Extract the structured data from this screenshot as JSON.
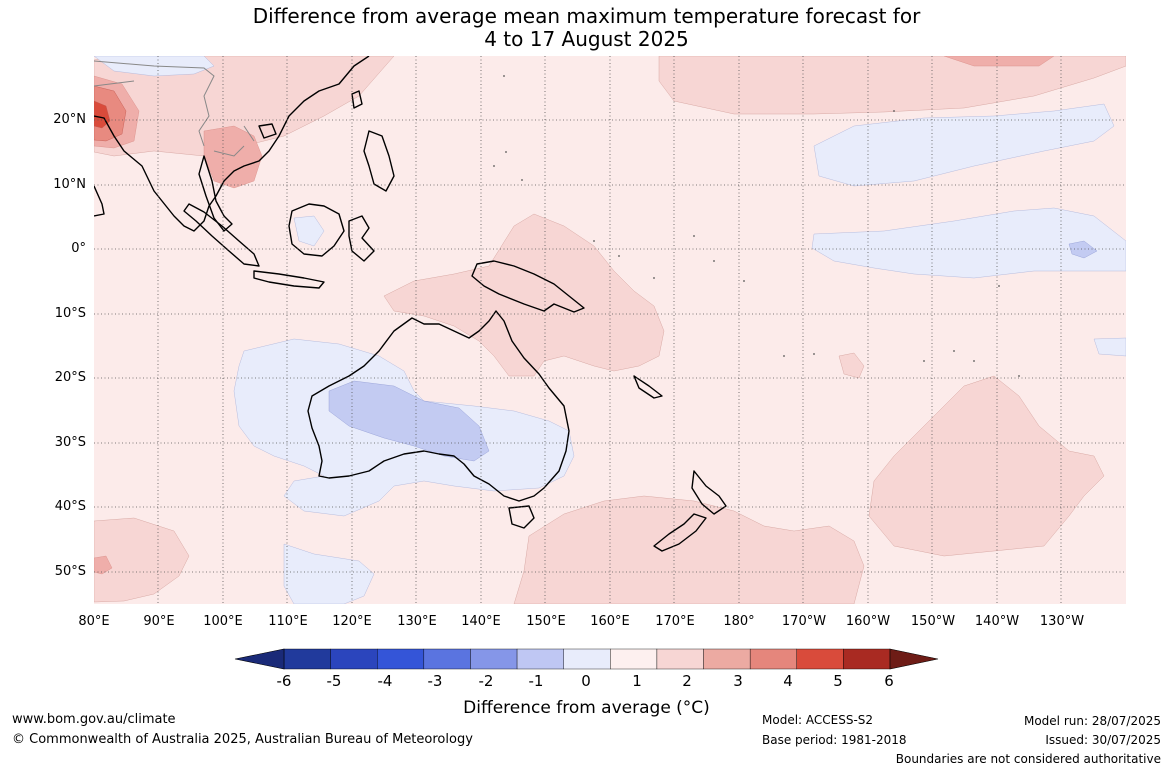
{
  "title": {
    "line1": "Difference from average mean maximum temperature forecast for",
    "line2": "4 to 17 August 2025"
  },
  "map": {
    "lon_labels": [
      "80°E",
      "90°E",
      "100°E",
      "110°E",
      "120°E",
      "130°E",
      "140°E",
      "150°E",
      "160°E",
      "170°E",
      "180°",
      "170°W",
      "160°W",
      "150°W",
      "140°W",
      "130°W"
    ],
    "lat_labels": [
      "20°N",
      "10°N",
      "0°",
      "10°S",
      "20°S",
      "30°S",
      "40°S",
      "50°S"
    ],
    "colors": {
      "background_anomaly": "#fcebea",
      "warm_1_2": "#f7d6d4",
      "warm_2_3": "#efaeaa",
      "warm_3_4": "#e88a80",
      "warm_4_5": "#d94b3b",
      "cool_0_1": "#e8ecfb",
      "cool_1_2": "#c3cbf2",
      "coastline": "#000000",
      "border": "#888888",
      "grid": "#555555"
    }
  },
  "legend": {
    "tick_labels": [
      "-6",
      "-5",
      "-4",
      "-3",
      "-2",
      "-1",
      "0",
      "1",
      "2",
      "3",
      "4",
      "5",
      "6"
    ],
    "colors": [
      "#213a9c",
      "#2b45bd",
      "#3455d8",
      "#5a74e0",
      "#8596e8",
      "#bfc7f3",
      "#e8ecfb",
      "#fdf0ef",
      "#f7d6d4",
      "#ecaaa2",
      "#e5867c",
      "#d94b3b",
      "#a92a22"
    ],
    "under_color": "#1a2a78",
    "over_color": "#6e1c16",
    "title": "Difference from average (°C)"
  },
  "footer": {
    "website": "www.bom.gov.au/climate",
    "copyright": "© Commonwealth of Australia 2025, Australian Bureau of Meteorology",
    "model": "Model: ACCESS-S2",
    "base_period": "Base period: 1981-2018",
    "model_run": "Model run: 28/07/2025",
    "issued": "Issued: 30/07/2025",
    "disclaimer": "Boundaries are not considered authoritative"
  }
}
